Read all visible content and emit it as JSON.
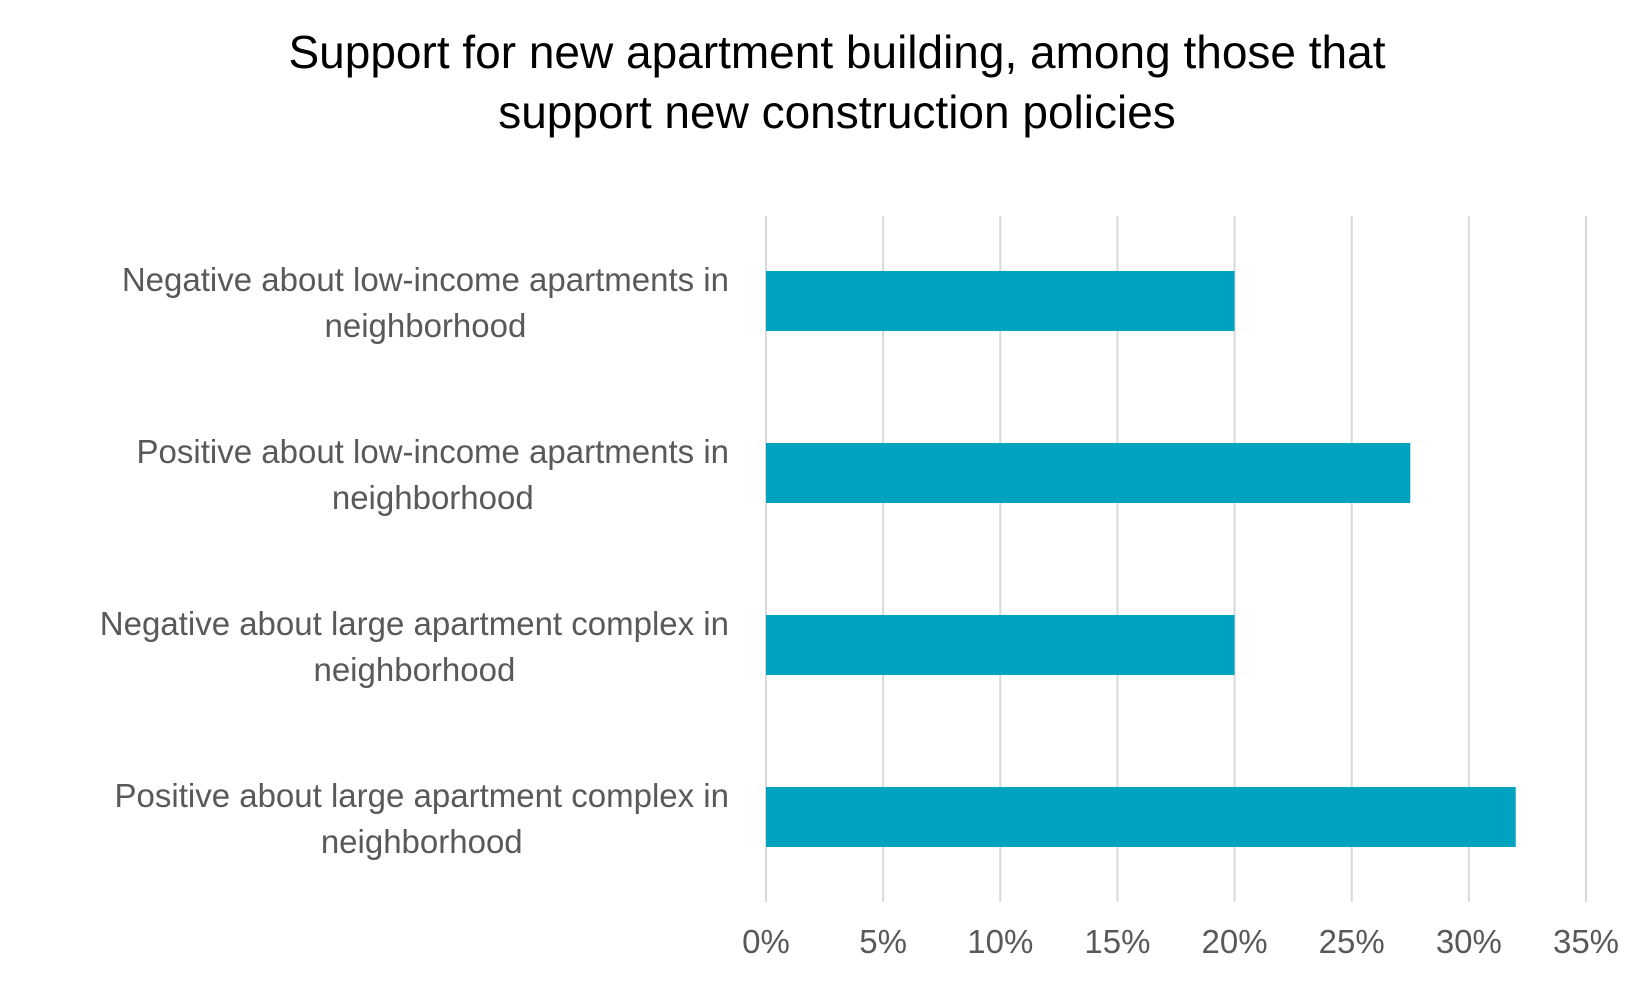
{
  "chart_data": {
    "type": "bar",
    "orientation": "horizontal",
    "title": "Support for new apartment building, among those that support new construction policies",
    "title_lines": [
      "Support for new apartment building, among those that",
      "support new construction policies"
    ],
    "categories": [
      "Negative about low-income apartments in neighborhood",
      "Positive about low-income apartments in neighborhood",
      "Negative about large apartment complex in neighborhood",
      "Positive about large apartment complex in neighborhood"
    ],
    "category_lines": [
      [
        "Negative about low-income apartments in",
        "neighborhood"
      ],
      [
        "Positive about low-income apartments in",
        "neighborhood"
      ],
      [
        "Negative about large apartment complex in",
        "neighborhood"
      ],
      [
        "Positive about large apartment complex in",
        "neighborhood"
      ]
    ],
    "values": [
      0.2,
      0.275,
      0.2,
      0.32
    ],
    "xlim": [
      0,
      0.35
    ],
    "ticks": [
      0,
      0.05,
      0.1,
      0.15,
      0.2,
      0.25,
      0.3,
      0.35
    ],
    "tick_labels": [
      "0%",
      "5%",
      "10%",
      "15%",
      "20%",
      "25%",
      "30%",
      "35%"
    ],
    "xlabel": "",
    "ylabel": "",
    "grid": "vertical",
    "legend": "none",
    "colors": {
      "bar": "#00A3BF",
      "grid": "#D9D9D9",
      "title": "#000000",
      "labels": "#595959"
    }
  }
}
